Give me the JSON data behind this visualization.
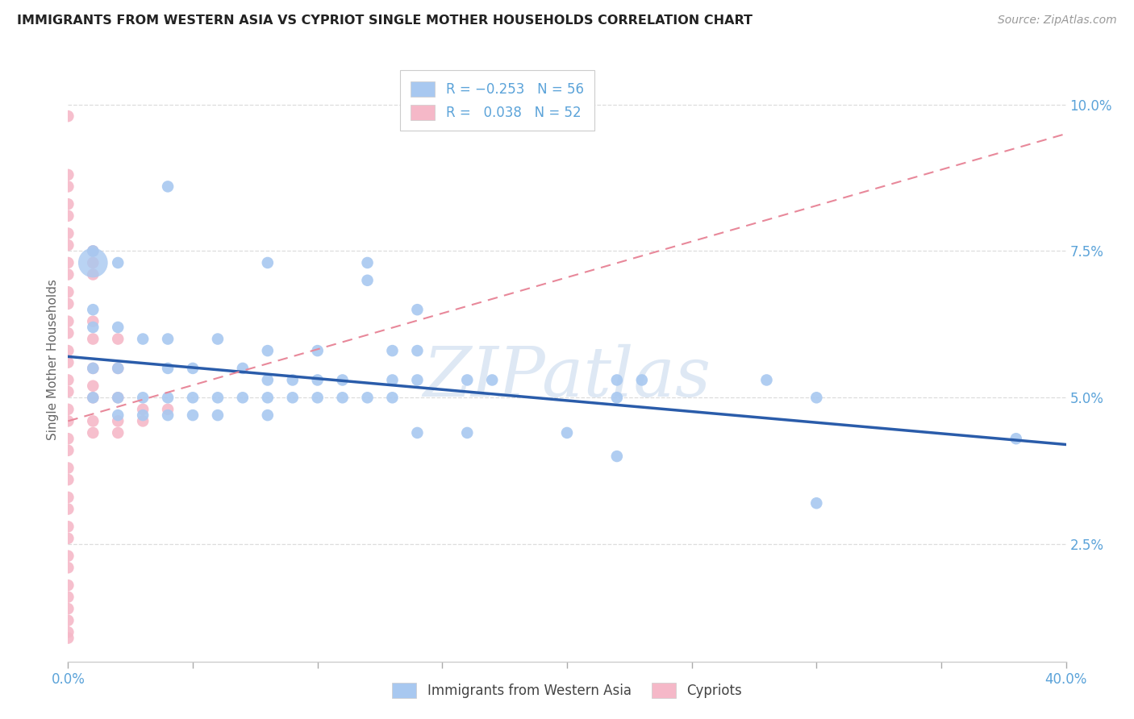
{
  "title": "IMMIGRANTS FROM WESTERN ASIA VS CYPRIOT SINGLE MOTHER HOUSEHOLDS CORRELATION CHART",
  "source": "Source: ZipAtlas.com",
  "ylabel": "Single Mother Households",
  "yticks": [
    "2.5%",
    "5.0%",
    "7.5%",
    "10.0%"
  ],
  "ytick_vals": [
    0.025,
    0.05,
    0.075,
    0.1
  ],
  "xrange": [
    0.0,
    0.4
  ],
  "yrange": [
    0.005,
    0.108
  ],
  "legend_label_blue": "Immigrants from Western Asia",
  "legend_label_pink": "Cypriots",
  "watermark": "ZIPatlas",
  "blue_color": "#a8c8f0",
  "pink_color": "#f5b8c8",
  "blue_line_color": "#2a5caa",
  "pink_line_color": "#e8889a",
  "blue_scatter": [
    [
      0.01,
      0.075
    ],
    [
      0.02,
      0.073
    ],
    [
      0.04,
      0.086
    ],
    [
      0.08,
      0.073
    ],
    [
      0.12,
      0.073
    ],
    [
      0.12,
      0.07
    ],
    [
      0.01,
      0.065
    ],
    [
      0.14,
      0.065
    ],
    [
      0.01,
      0.062
    ],
    [
      0.02,
      0.062
    ],
    [
      0.03,
      0.06
    ],
    [
      0.04,
      0.06
    ],
    [
      0.06,
      0.06
    ],
    [
      0.08,
      0.058
    ],
    [
      0.1,
      0.058
    ],
    [
      0.13,
      0.058
    ],
    [
      0.14,
      0.058
    ],
    [
      0.01,
      0.055
    ],
    [
      0.02,
      0.055
    ],
    [
      0.04,
      0.055
    ],
    [
      0.05,
      0.055
    ],
    [
      0.07,
      0.055
    ],
    [
      0.08,
      0.053
    ],
    [
      0.09,
      0.053
    ],
    [
      0.1,
      0.053
    ],
    [
      0.11,
      0.053
    ],
    [
      0.13,
      0.053
    ],
    [
      0.14,
      0.053
    ],
    [
      0.16,
      0.053
    ],
    [
      0.17,
      0.053
    ],
    [
      0.22,
      0.053
    ],
    [
      0.23,
      0.053
    ],
    [
      0.28,
      0.053
    ],
    [
      0.01,
      0.05
    ],
    [
      0.02,
      0.05
    ],
    [
      0.03,
      0.05
    ],
    [
      0.04,
      0.05
    ],
    [
      0.05,
      0.05
    ],
    [
      0.06,
      0.05
    ],
    [
      0.07,
      0.05
    ],
    [
      0.08,
      0.05
    ],
    [
      0.09,
      0.05
    ],
    [
      0.1,
      0.05
    ],
    [
      0.11,
      0.05
    ],
    [
      0.12,
      0.05
    ],
    [
      0.13,
      0.05
    ],
    [
      0.22,
      0.05
    ],
    [
      0.3,
      0.05
    ],
    [
      0.02,
      0.047
    ],
    [
      0.03,
      0.047
    ],
    [
      0.04,
      0.047
    ],
    [
      0.05,
      0.047
    ],
    [
      0.06,
      0.047
    ],
    [
      0.08,
      0.047
    ],
    [
      0.14,
      0.044
    ],
    [
      0.16,
      0.044
    ],
    [
      0.2,
      0.044
    ],
    [
      0.22,
      0.04
    ],
    [
      0.3,
      0.032
    ],
    [
      0.38,
      0.043
    ]
  ],
  "blue_large": [
    [
      0.01,
      0.073
    ]
  ],
  "pink_scatter": [
    [
      0.0,
      0.098
    ],
    [
      0.0,
      0.088
    ],
    [
      0.0,
      0.086
    ],
    [
      0.0,
      0.083
    ],
    [
      0.0,
      0.081
    ],
    [
      0.0,
      0.078
    ],
    [
      0.0,
      0.076
    ],
    [
      0.0,
      0.073
    ],
    [
      0.0,
      0.071
    ],
    [
      0.01,
      0.075
    ],
    [
      0.01,
      0.073
    ],
    [
      0.01,
      0.071
    ],
    [
      0.0,
      0.068
    ],
    [
      0.0,
      0.066
    ],
    [
      0.0,
      0.063
    ],
    [
      0.0,
      0.061
    ],
    [
      0.01,
      0.063
    ],
    [
      0.01,
      0.06
    ],
    [
      0.02,
      0.06
    ],
    [
      0.0,
      0.058
    ],
    [
      0.0,
      0.056
    ],
    [
      0.01,
      0.055
    ],
    [
      0.02,
      0.055
    ],
    [
      0.0,
      0.053
    ],
    [
      0.0,
      0.051
    ],
    [
      0.01,
      0.052
    ],
    [
      0.01,
      0.05
    ],
    [
      0.02,
      0.05
    ],
    [
      0.0,
      0.048
    ],
    [
      0.0,
      0.046
    ],
    [
      0.0,
      0.043
    ],
    [
      0.0,
      0.041
    ],
    [
      0.0,
      0.038
    ],
    [
      0.0,
      0.036
    ],
    [
      0.0,
      0.033
    ],
    [
      0.0,
      0.031
    ],
    [
      0.0,
      0.028
    ],
    [
      0.0,
      0.026
    ],
    [
      0.0,
      0.023
    ],
    [
      0.0,
      0.021
    ],
    [
      0.0,
      0.018
    ],
    [
      0.0,
      0.016
    ],
    [
      0.0,
      0.014
    ],
    [
      0.0,
      0.012
    ],
    [
      0.0,
      0.01
    ],
    [
      0.01,
      0.046
    ],
    [
      0.01,
      0.044
    ],
    [
      0.02,
      0.046
    ],
    [
      0.02,
      0.044
    ],
    [
      0.03,
      0.048
    ],
    [
      0.03,
      0.046
    ],
    [
      0.04,
      0.048
    ],
    [
      0.0,
      0.009
    ]
  ],
  "blue_trendline": [
    0.0,
    0.4,
    0.057,
    0.042
  ],
  "pink_trendline": [
    0.0,
    0.4,
    0.046,
    0.095
  ]
}
